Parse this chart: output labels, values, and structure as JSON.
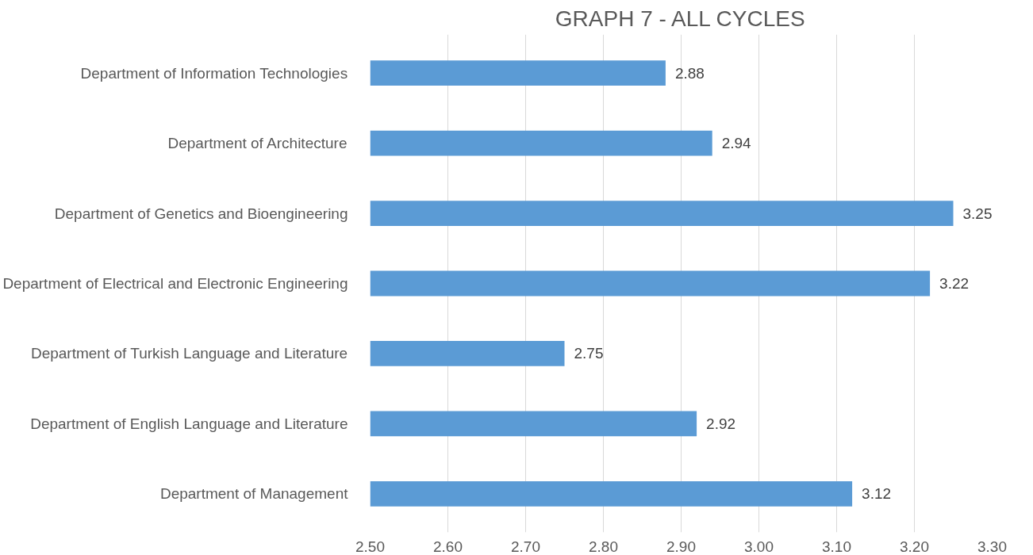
{
  "chart_data": {
    "type": "bar",
    "title": "GRAPH 7 - ALL CYCLES",
    "orientation": "horizontal",
    "categories": [
      "Department of Information Technologies",
      "Department of Architecture",
      "Department of Genetics and Bioengineering",
      "Department of Electrical and Electronic Engineering",
      "Department of Turkish Language and Literature",
      "Department of English Language and Literature",
      "Department of Management"
    ],
    "values": [
      2.88,
      2.94,
      3.25,
      3.22,
      2.75,
      2.92,
      3.12
    ],
    "color": "#5b9bd5",
    "xlim": [
      2.5,
      3.3
    ],
    "xticks": [
      {
        "value": 2.5,
        "label": "2.50"
      },
      {
        "value": 2.6,
        "label": "2.60"
      },
      {
        "value": 2.7,
        "label": "2.70"
      },
      {
        "value": 2.8,
        "label": "2.80"
      },
      {
        "value": 2.9,
        "label": "2.90"
      },
      {
        "value": 3.0,
        "label": "3.00"
      },
      {
        "value": 3.1,
        "label": "3.10"
      },
      {
        "value": 3.2,
        "label": "3.20"
      },
      {
        "value": 3.3,
        "label": "3.30"
      }
    ],
    "grid": "x",
    "data_labels": true
  }
}
